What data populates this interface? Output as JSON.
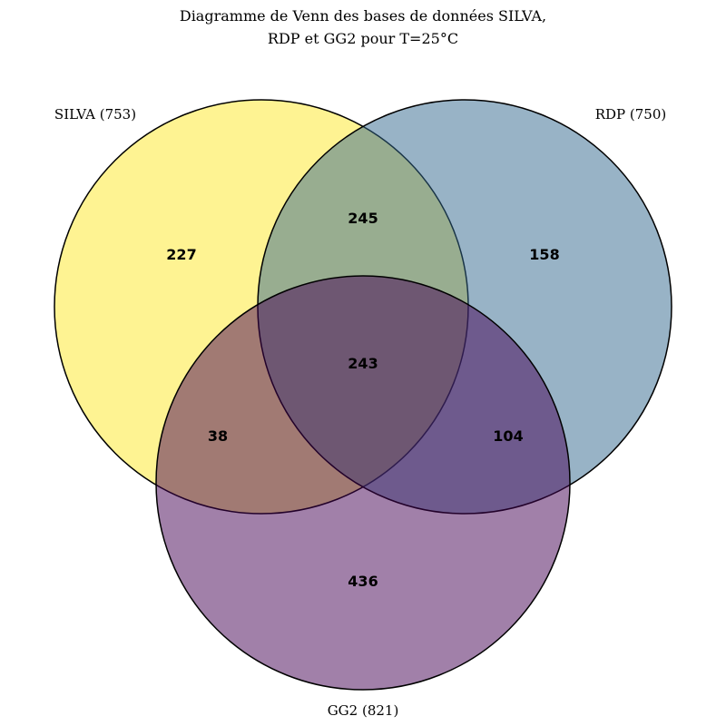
{
  "title": {
    "line1": "Diagramme de Venn des bases de données SILVA,",
    "line2": "RDP et GG2 pour T=25°C"
  },
  "sets": {
    "silva": {
      "label": "SILVA (753)",
      "color": "#fde725",
      "opacity": 0.5
    },
    "rdp": {
      "label": "RDP (750)",
      "color": "#31688e",
      "opacity": 0.5
    },
    "gg2": {
      "label": "GG2 (821)",
      "color": "#440154",
      "opacity": 0.5
    }
  },
  "regions": {
    "silva_only": "227",
    "rdp_only": "158",
    "gg2_only": "436",
    "silva_rdp": "245",
    "silva_gg2": "38",
    "rdp_gg2": "104",
    "all_three": "243"
  }
}
